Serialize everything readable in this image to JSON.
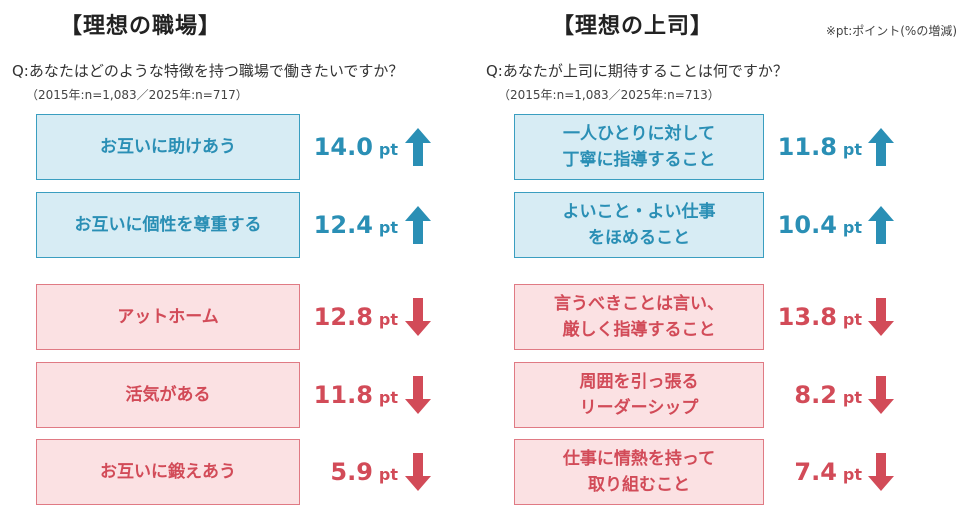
{
  "note": "※pt:ポイント(%の増減)",
  "unit": "pt",
  "colors": {
    "up": "#2a8fb5",
    "up_fill": "#d7ecf4",
    "down": "#d24b58",
    "down_fill": "#fbe1e3"
  },
  "left": {
    "title": "【理想の職場】",
    "question": "Q:あなたはどのような特徴を持つ職場で働きたいですか？",
    "sample": "（2015年:n=1,083／2025年:n=717）"
  },
  "right": {
    "title": "【理想の上司】",
    "question": "Q:あなたが上司に期待することは何ですか？",
    "sample": "（2015年:n=1,083／2025年:n=713）"
  },
  "chart_data": [
    {
      "type": "table",
      "title": "【理想の職場】",
      "question": "Q:あなたはどのような特徴を持つ職場で働きたいですか？",
      "unit": "pt",
      "items": [
        {
          "label": "お互いに助けあう",
          "value": 14.0,
          "display": "14.0",
          "direction": "up"
        },
        {
          "label": "お互いに個性を尊重する",
          "value": 12.4,
          "display": "12.4",
          "direction": "up"
        },
        {
          "label": "アットホーム",
          "value": 12.8,
          "display": "12.8",
          "direction": "down"
        },
        {
          "label": "活気がある",
          "value": 11.8,
          "display": "11.8",
          "direction": "down"
        },
        {
          "label": "お互いに鍛えあう",
          "value": 5.9,
          "display": "5.9",
          "direction": "down"
        }
      ]
    },
    {
      "type": "table",
      "title": "【理想の上司】",
      "question": "Q:あなたが上司に期待することは何ですか？",
      "unit": "pt",
      "items": [
        {
          "label": "一人ひとりに対して\n丁寧に指導すること",
          "value": 11.8,
          "display": "11.8",
          "direction": "up"
        },
        {
          "label": "よいこと・よい仕事\nをほめること",
          "value": 10.4,
          "display": "10.4",
          "direction": "up"
        },
        {
          "label": "言うべきことは言い、\n厳しく指導すること",
          "value": 13.8,
          "display": "13.8",
          "direction": "down"
        },
        {
          "label": "周囲を引っ張る\nリーダーシップ",
          "value": 8.2,
          "display": "8.2",
          "direction": "down"
        },
        {
          "label": "仕事に情熱を持って\n取り組むこと",
          "value": 7.4,
          "display": "7.4",
          "direction": "down"
        }
      ]
    }
  ]
}
